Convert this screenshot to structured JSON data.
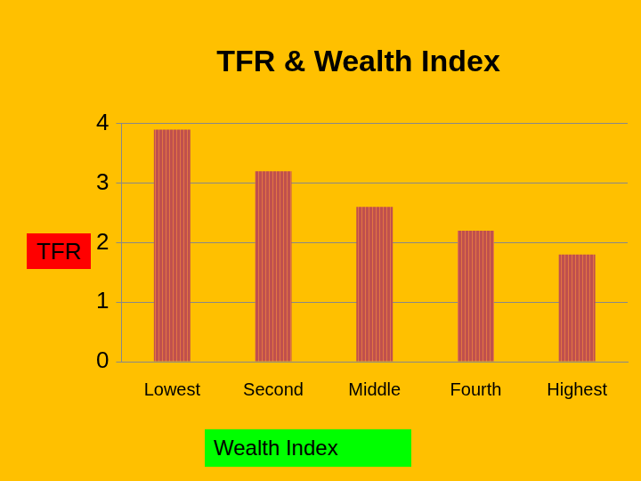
{
  "chart_data": {
    "type": "bar",
    "title": "TFR & Wealth Index",
    "xlabel": "Wealth Index",
    "ylabel": "TFR",
    "categories": [
      "Lowest",
      "Second",
      "Middle",
      "Fourth",
      "Highest"
    ],
    "values": [
      3.9,
      3.2,
      2.6,
      2.2,
      1.8
    ],
    "color": "#c0504d",
    "ylim": [
      0,
      4
    ],
    "yticks": [
      0,
      1,
      2,
      3,
      4
    ],
    "grid": true
  }
}
